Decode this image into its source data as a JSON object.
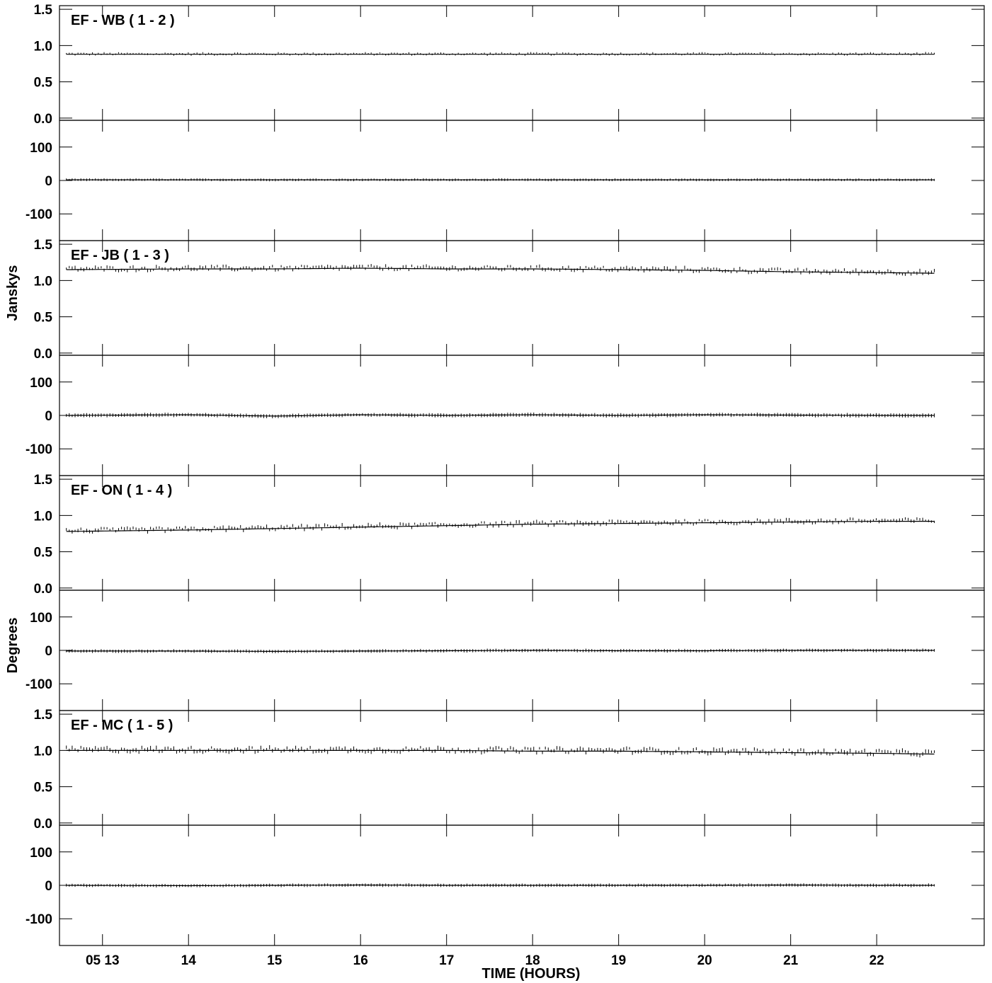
{
  "chart_data": {
    "type": "line",
    "subtype": "baseline amplitude and phase vs time with error bars",
    "xlabel": "TIME (HOURS)",
    "ylabel_amplitude": "Janskys",
    "ylabel_phase": "Degrees",
    "xlim": [
      12.5,
      23.25
    ],
    "x_ticks": [
      13,
      14,
      15,
      16,
      17,
      18,
      19,
      20,
      21,
      22
    ],
    "x_tick_labels": [
      "05 13",
      "14",
      "15",
      "16",
      "17",
      "18",
      "19",
      "20",
      "21",
      "22"
    ],
    "amplitude_ylim": [
      -0.03,
      1.55
    ],
    "amplitude_ticks": [
      0.0,
      0.5,
      1.0,
      1.5
    ],
    "amplitude_tick_labels": [
      "0.0",
      "0.5",
      "1.0",
      "1.5"
    ],
    "phase_ylim": [
      -180,
      180
    ],
    "phase_ticks": [
      -100,
      0,
      100
    ],
    "phase_tick_labels": [
      "-100",
      "0",
      "100"
    ],
    "data_time_range": [
      12.58,
      22.67
    ],
    "panels": [
      {
        "name": "EF - WB ( 1 - 2 )",
        "amplitude_model": {
          "x": [
            12.58,
            15,
            17,
            19,
            21,
            22.67
          ],
          "y": [
            0.88,
            0.88,
            0.88,
            0.88,
            0.88,
            0.88
          ]
        },
        "amplitude_scatter": 0.03,
        "phase_model": {
          "x": [
            12.58,
            22.67
          ],
          "y": [
            2,
            2
          ]
        },
        "phase_scatter": 4
      },
      {
        "name": "EF - JB ( 1 - 3 )",
        "amplitude_model": {
          "x": [
            12.58,
            14,
            15,
            16,
            17,
            18,
            19,
            20,
            21,
            22,
            22.67
          ],
          "y": [
            1.15,
            1.16,
            1.16,
            1.17,
            1.16,
            1.16,
            1.15,
            1.14,
            1.12,
            1.11,
            1.1
          ]
        },
        "amplitude_scatter": 0.06,
        "phase_model": {
          "x": [
            12.58,
            14,
            15,
            16,
            17,
            18,
            19,
            20,
            21,
            22,
            22.67
          ],
          "y": [
            0,
            2,
            -2,
            2,
            0,
            2,
            0,
            2,
            1,
            0,
            0
          ]
        },
        "phase_scatter": 6
      },
      {
        "name": "EF - ON ( 1 - 4 )",
        "amplitude_model": {
          "x": [
            12.58,
            14,
            15,
            16,
            17,
            18,
            19,
            20,
            21,
            22,
            22.67
          ],
          "y": [
            0.78,
            0.8,
            0.82,
            0.84,
            0.86,
            0.88,
            0.89,
            0.9,
            0.91,
            0.92,
            0.92
          ]
        },
        "amplitude_scatter": 0.06,
        "phase_model": {
          "x": [
            12.58,
            14,
            15,
            16,
            17,
            18,
            19,
            20,
            21,
            22,
            22.67
          ],
          "y": [
            -2,
            -2,
            -3,
            -2,
            -1,
            0,
            -1,
            -1,
            0,
            0,
            0
          ]
        },
        "phase_scatter": 5
      },
      {
        "name": "EF - MC ( 1 - 5 )",
        "amplitude_model": {
          "x": [
            12.58,
            14,
            15,
            16,
            17,
            18,
            19,
            20,
            21,
            22,
            22.67
          ],
          "y": [
            1.0,
            1.0,
            1.0,
            1.0,
            1.0,
            0.99,
            0.99,
            0.98,
            0.97,
            0.96,
            0.95
          ]
        },
        "amplitude_scatter": 0.07,
        "phase_model": {
          "x": [
            12.58,
            14,
            15,
            16,
            17,
            18,
            19,
            20,
            21,
            22,
            22.67
          ],
          "y": [
            0,
            -1,
            0,
            1,
            0,
            0,
            0,
            0,
            1,
            0,
            0
          ]
        },
        "phase_scatter": 5
      }
    ]
  }
}
